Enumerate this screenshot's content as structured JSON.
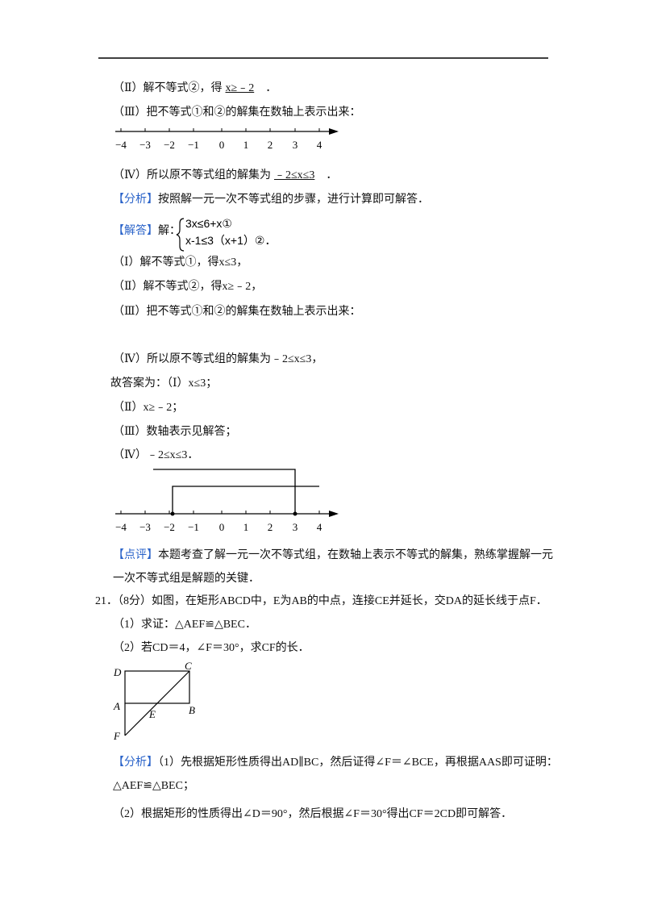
{
  "step_ii_blank": {
    "text": "（Ⅱ）解不等式②，得",
    "answer": "x≥﹣2",
    "end": "．"
  },
  "step_iii_blank": "（Ⅲ）把不等式①和②的解集在数轴上表示出来：",
  "number_line_labels": [
    "−4",
    "−3",
    "−2",
    "−1",
    "0",
    "1",
    "2",
    "3",
    "4"
  ],
  "step_iv_blank": {
    "text": "（Ⅳ）所以原不等式组的解集为",
    "answer": "﹣2≤x≤3",
    "end": "．"
  },
  "analysis1": {
    "tag": "【分析】",
    "text": "按照解一元一次不等式组的步骤，进行计算即可解答．"
  },
  "solution": {
    "tag": "【解答】",
    "text": "解：",
    "system": [
      "3x≤6+x①",
      "x-1≤3（x+1）②"
    ],
    "end": "．"
  },
  "solution_lines": [
    "（Ⅰ）解不等式①，得x≤3，",
    "（Ⅱ）解不等式②，得x≥﹣2，",
    "（Ⅲ）把不等式①和②的解集在数轴上表示出来：",
    "（Ⅳ）所以原不等式组的解集为﹣2≤x≤3，",
    "故答案为：（Ⅰ）x≤3；",
    "（Ⅱ）x≥﹣2；",
    "（Ⅲ）数轴表示见解答；",
    "（Ⅳ）﹣2≤x≤3．"
  ],
  "comment": {
    "tag": "【点评】",
    "text": "本题考查了解一元一次不等式组，在数轴上表示不等式的解集，熟练掌握解一元",
    "text2": "一次不等式组是解题的关键．"
  },
  "q21": {
    "stem": "21．（8分）如图，在矩形ABCD中，E为AB的中点，连接CE并延长，交DA的延长线于点F．",
    "part1": "（1）求证：△AEF≌△BEC．",
    "part2": "（2）若CD＝4，∠F＝30°，求CF的长．",
    "points": {
      "D": "D",
      "C": "C",
      "A": "A",
      "E": "E",
      "B": "B",
      "F": "F"
    },
    "analysis_tag": "【分析】",
    "analysis1": "（1）先根据矩形性质得出AD∥BC，然后证得∠F＝∠BCE，再根据AAS即可证明：",
    "analysis1b": "△AEF≌△BEC；",
    "analysis2": "（2）根据矩形的性质得出∠D＝90°，然后根据∠F＝30°得出CF＝2CD即可解答．"
  }
}
